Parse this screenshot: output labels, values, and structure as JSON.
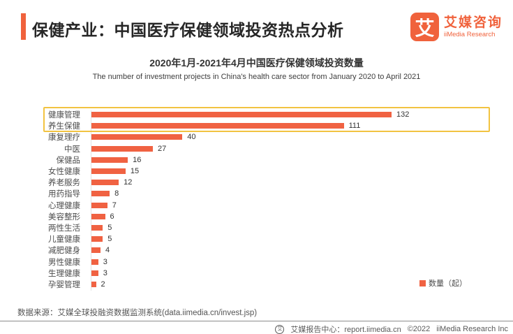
{
  "header": {
    "title": "保健产业：中国医疗保健领域投资热点分析",
    "logo": {
      "mark": "艾",
      "name_cn": "艾媒咨询",
      "name_en": "iiMedia Research"
    }
  },
  "chart": {
    "title": "2020年1月-2021年4月中国医疗保健领域投资数量",
    "subtitle": "The number of investment projects in China's health care sector from January 2020 to April 2021",
    "legend_label": "数量（起）"
  },
  "chart_data": {
    "type": "bar",
    "orientation": "horizontal",
    "title": "2020年1月-2021年4月中国医疗保健领域投资数量",
    "subtitle": "The number of investment projects in China's health care sector from January 2020 to April 2021",
    "categories": [
      "健康管理",
      "养生保健",
      "康复理疗",
      "中医",
      "保健品",
      "女性健康",
      "养老服务",
      "用药指导",
      "心理健康",
      "美容整形",
      "两性生活",
      "儿童健康",
      "减肥健身",
      "男性健康",
      "生理健康",
      "孕婴管理"
    ],
    "values": [
      132,
      111,
      40,
      27,
      16,
      15,
      12,
      8,
      7,
      6,
      5,
      5,
      4,
      3,
      3,
      2
    ],
    "series_name": "数量（起）",
    "xlim": [
      0,
      140
    ],
    "grid": false,
    "data_labels": true,
    "legend_position": "bottom-right",
    "highlighted_categories": [
      "健康管理",
      "养生保健"
    ]
  },
  "footer": {
    "source": "数据来源：艾媒全球投融资数据监测系统(data.iimedia.cn/invest.jsp)",
    "report_center": "艾媒报告中心：report.iimedia.cn",
    "copyright": "©2022",
    "company": "iiMedia Research Inc"
  },
  "colors": {
    "accent_orange": "#F0623C",
    "bar_orange": "#F06242",
    "highlight_border": "#F2C341"
  }
}
